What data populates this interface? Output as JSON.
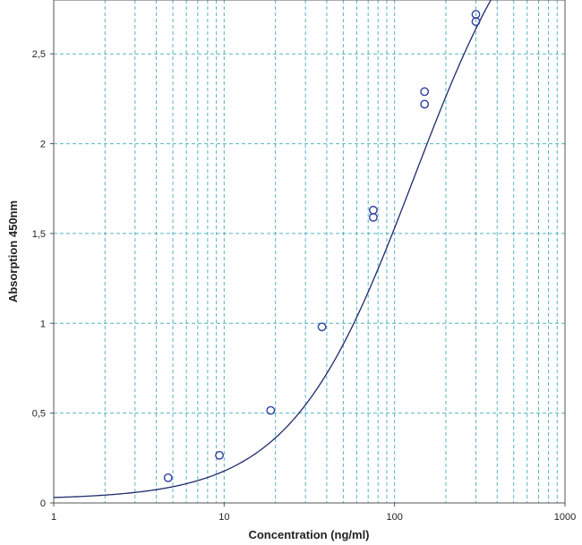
{
  "chart_data": {
    "type": "scatter",
    "xscale": "log",
    "xlabel": "Concentration (ng/ml)",
    "ylabel": "Absorption 450nm",
    "xlim": [
      1,
      1000
    ],
    "ylim": [
      0,
      2.8
    ],
    "xticks": [
      1,
      10,
      100,
      1000
    ],
    "xtick_labels": [
      "1",
      "10",
      "100",
      "1000"
    ],
    "yticks": [
      0,
      0.5,
      1,
      1.5,
      2,
      2.5
    ],
    "ytick_labels": [
      "0",
      "0,5",
      "1",
      "1,5",
      "2",
      "2,5"
    ],
    "grid": true,
    "series": [
      {
        "points": [
          [
            4.69,
            0.14
          ],
          [
            9.38,
            0.265
          ],
          [
            18.75,
            0.515
          ],
          [
            37.5,
            0.98
          ],
          [
            75,
            1.59
          ],
          [
            75,
            1.63
          ],
          [
            150,
            2.22
          ],
          [
            150,
            2.29
          ],
          [
            300,
            2.68
          ],
          [
            300,
            2.72
          ]
        ]
      }
    ],
    "fit": {
      "model": "4PL",
      "bottom": 0.02,
      "top": 3.6,
      "ec50": 130,
      "hill": 1.2
    },
    "colors": {
      "grid": "#3aa7b8",
      "curve": "#1f2a6b",
      "points": "#2f3fa0"
    }
  }
}
